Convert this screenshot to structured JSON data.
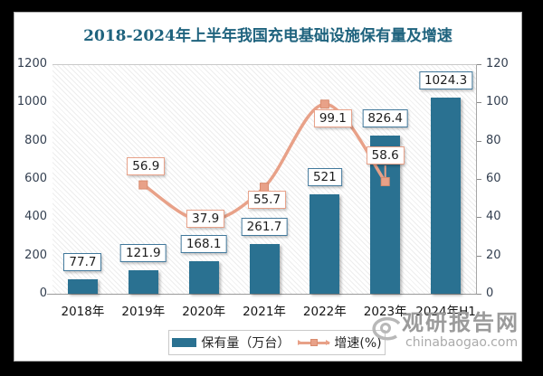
{
  "title": "2018-2024年上半年我国充电基础设施保有量及增速",
  "chart_data": {
    "type": "bar+line",
    "categories": [
      "2018年",
      "2019年",
      "2020年",
      "2021年",
      "2022年",
      "2023年",
      "2024年H1"
    ],
    "series": [
      {
        "name": "保有量（万台）",
        "type": "bar",
        "axis": "left",
        "values": [
          77.7,
          121.9,
          168.1,
          261.7,
          521,
          826.4,
          1024.3
        ]
      },
      {
        "name": "增速(%)",
        "type": "line",
        "axis": "right",
        "values": [
          null,
          56.9,
          37.9,
          55.7,
          99.1,
          58.6,
          null
        ]
      }
    ],
    "left_axis": {
      "min": 0,
      "max": 1200,
      "step": 200,
      "ticks": [
        "0",
        "200",
        "400",
        "600",
        "800",
        "1000",
        "1200"
      ]
    },
    "right_axis": {
      "min": 0,
      "max": 120,
      "step": 20,
      "ticks": [
        "0",
        "20",
        "40",
        "60",
        "80",
        "100",
        "120"
      ]
    },
    "legend_position": "bottom",
    "grid": false
  },
  "watermark": {
    "site_name": "观研报告网",
    "site_url": "chinabaogao.com"
  },
  "colors": {
    "bar": "#2A7191",
    "line": "#E8A188",
    "line_marker_border": "#D98C6F",
    "title": "#1F637E",
    "axis_text": "#333F50",
    "bar_label_border": "#41789B",
    "line_label_border": "#E8A188",
    "frame": "#000000"
  }
}
